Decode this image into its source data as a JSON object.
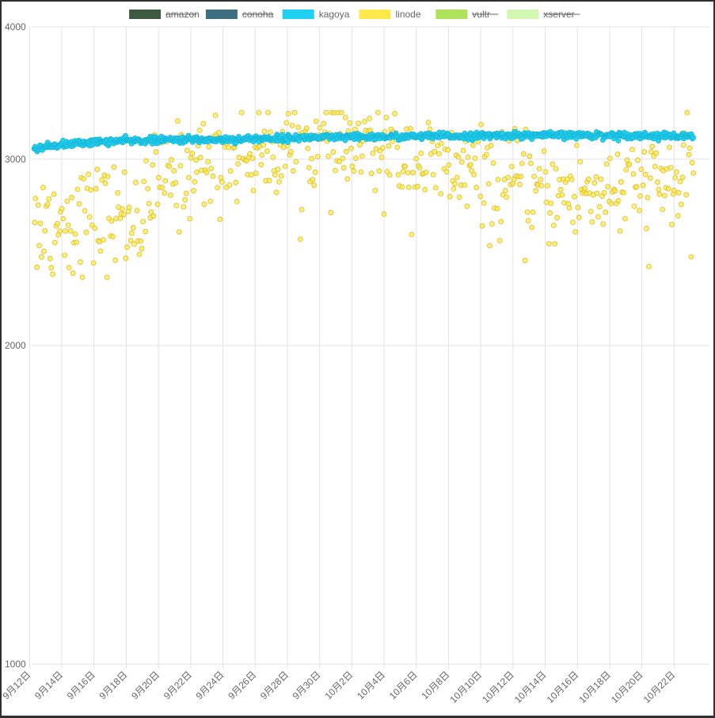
{
  "chart_data": {
    "type": "scatter",
    "y_scale": "log",
    "ylim": [
      1000,
      4000
    ],
    "y_ticks": [
      1000,
      2000,
      3000,
      4000
    ],
    "x_ticks": [
      "9月12日",
      "9月14日",
      "9月16日",
      "9月18日",
      "9月20日",
      "9月22日",
      "9月24日",
      "9月26日",
      "9月28日",
      "9月30日",
      "10月2日",
      "10月4日",
      "10月6日",
      "10月8日",
      "10月10日",
      "10月12日",
      "10月14日",
      "10月16日",
      "10月18日",
      "10月20日",
      "10月22日"
    ],
    "x_range_days": [
      "2023-09-11",
      "2023-10-23"
    ],
    "grid": true,
    "legend_position": "top",
    "series": [
      {
        "name": "amazon",
        "color": "#3d5a40",
        "hidden": true,
        "points": []
      },
      {
        "name": "conoha",
        "color": "#3d6f80",
        "hidden": true,
        "points": []
      },
      {
        "name": "kagoya",
        "color": "#1fd0f2",
        "hidden": false,
        "trend": [
          [
            0.0,
            3110
          ],
          [
            0.3,
            3080
          ],
          [
            0.8,
            3065
          ],
          [
            2.0,
            3090
          ],
          [
            4.0,
            3110
          ],
          [
            6.0,
            3120
          ],
          [
            8.0,
            3125
          ],
          [
            10.0,
            3130
          ],
          [
            12.0,
            3130
          ],
          [
            14.0,
            3135
          ],
          [
            16.0,
            3140
          ],
          [
            18.0,
            3145
          ],
          [
            20.0,
            3145
          ],
          [
            22.0,
            3150
          ],
          [
            24.0,
            3150
          ],
          [
            26.0,
            3155
          ],
          [
            28.0,
            3155
          ],
          [
            30.0,
            3160
          ],
          [
            32.0,
            3160
          ],
          [
            34.0,
            3160
          ],
          [
            36.0,
            3160
          ],
          [
            38.0,
            3160
          ],
          [
            40.0,
            3155
          ],
          [
            41.8,
            3150
          ]
        ],
        "spread": 25
      },
      {
        "name": "linode",
        "color": "#ffe84a",
        "hidden": false,
        "trend": [
          [
            0.0,
            2600
          ],
          [
            2.0,
            2620
          ],
          [
            4.0,
            2640
          ],
          [
            6.0,
            2650
          ],
          [
            8.0,
            2650
          ],
          [
            8.3,
            2850
          ],
          [
            10.0,
            2920
          ],
          [
            12.0,
            2990
          ],
          [
            14.0,
            3040
          ],
          [
            16.0,
            3070
          ],
          [
            18.0,
            3080
          ],
          [
            20.0,
            3080
          ],
          [
            22.0,
            3060
          ],
          [
            24.0,
            3020
          ],
          [
            26.0,
            2950
          ],
          [
            28.0,
            2900
          ],
          [
            30.0,
            2850
          ],
          [
            32.0,
            2800
          ],
          [
            34.0,
            2780
          ],
          [
            36.0,
            2800
          ],
          [
            38.0,
            2820
          ],
          [
            40.0,
            2840
          ],
          [
            41.8,
            2850
          ]
        ],
        "spread": 160
      },
      {
        "name": "vultr",
        "color": "#aee25a",
        "hidden": true,
        "points": []
      },
      {
        "name": "xserver",
        "color": "#d2f7b0",
        "hidden": true,
        "points": []
      }
    ]
  }
}
